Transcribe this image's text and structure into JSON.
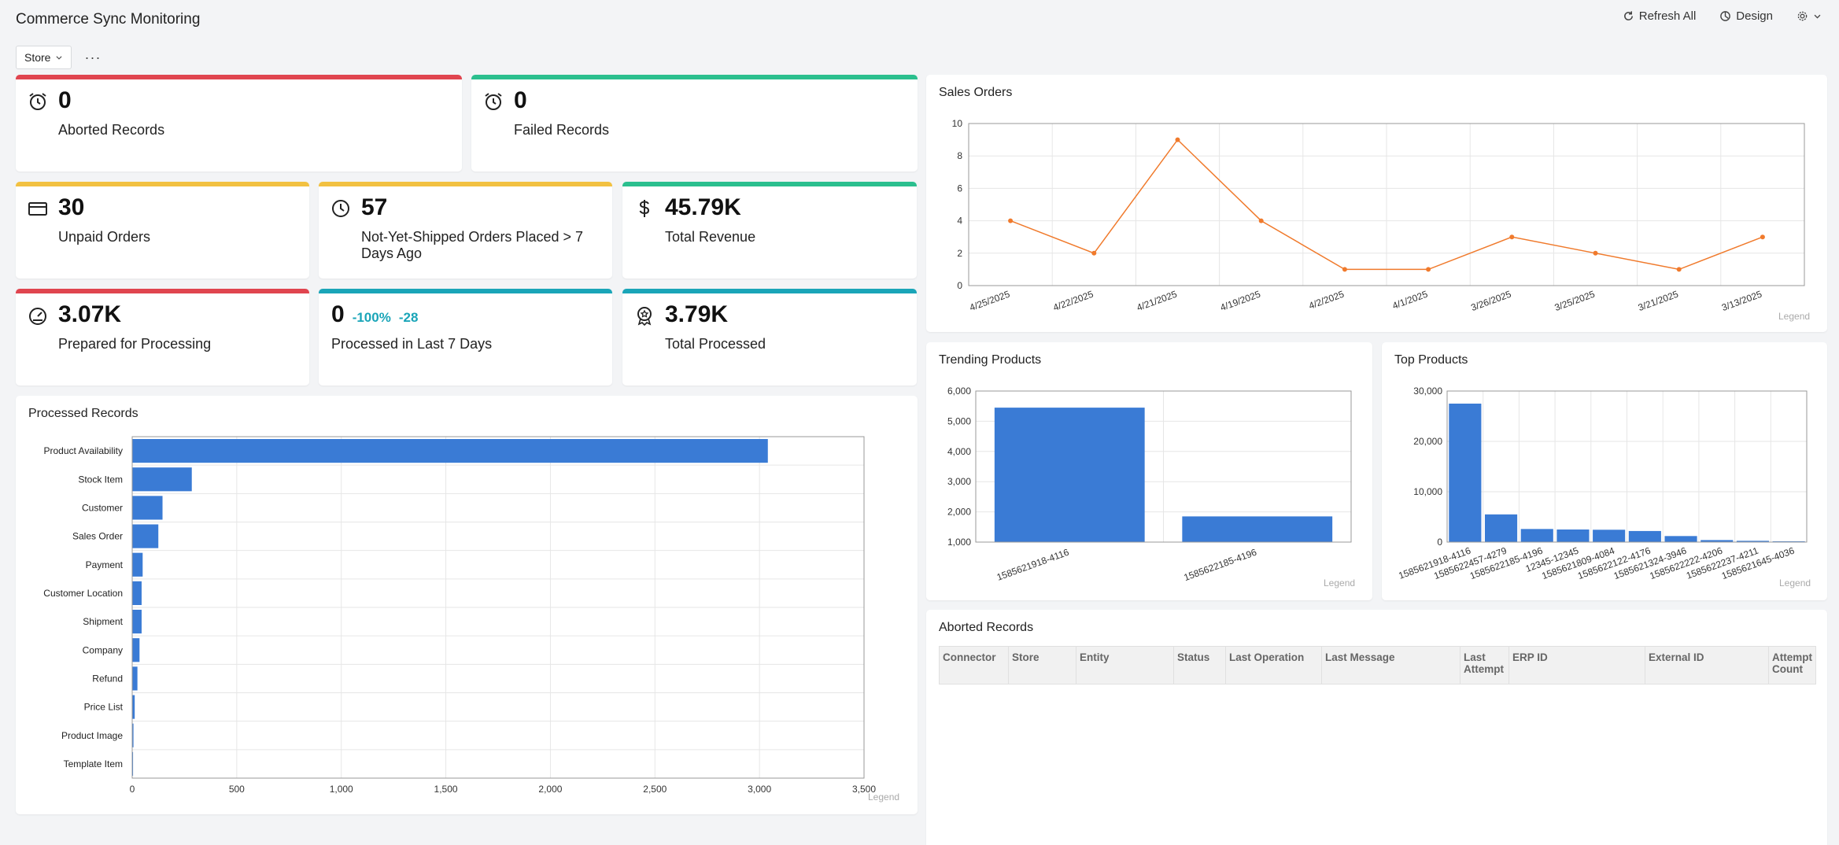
{
  "header": {
    "title": "Commerce Sync Monitoring",
    "refresh_label": "Refresh All",
    "design_label": "Design"
  },
  "filters": {
    "store_label": "Store",
    "more_label": "···"
  },
  "kpis": {
    "aborted": {
      "value": "0",
      "label": "Aborted Records",
      "color": "#e0454f"
    },
    "failed": {
      "value": "0",
      "label": "Failed Records",
      "color": "#2bbf8e"
    },
    "unpaid": {
      "value": "30",
      "label": "Unpaid Orders",
      "color": "#f2c141"
    },
    "not_shipped": {
      "value": "57",
      "label": "Not-Yet-Shipped Orders Placed > 7 Days Ago",
      "color": "#f2c141"
    },
    "revenue": {
      "value": "45.79K",
      "label": "Total Revenue",
      "color": "#2bbf8e"
    },
    "prepared": {
      "value": "3.07K",
      "label": "Prepared for Processing",
      "color": "#e0454f"
    },
    "processed7": {
      "value": "0",
      "delta_pct": "-100%",
      "delta_abs": "-28",
      "label": "Processed in Last 7 Days",
      "color": "#1aa5b8"
    },
    "total_processed": {
      "value": "3.79K",
      "label": "Total Processed",
      "color": "#1aa5b8"
    }
  },
  "panels": {
    "processed_records": {
      "title": "Processed Records",
      "legend": "Legend"
    },
    "sales_orders": {
      "title": "Sales Orders",
      "legend": "Legend"
    },
    "trending": {
      "title": "Trending Products",
      "legend": "Legend"
    },
    "top": {
      "title": "Top Products",
      "legend": "Legend"
    },
    "aborted_table": {
      "title": "Aborted Records",
      "columns": [
        "Connector",
        "Store",
        "Entity",
        "Status",
        "Last Operation",
        "Last Message",
        "Last Attempt",
        "ERP ID",
        "External ID",
        "Attempt Count"
      ]
    }
  },
  "chart_data": [
    {
      "id": "processed_records",
      "type": "bar",
      "orientation": "horizontal",
      "title": "Processed Records",
      "categories": [
        "Product Availability",
        "Stock Item",
        "Customer",
        "Sales Order",
        "Payment",
        "Customer Location",
        "Shipment",
        "Company",
        "Refund",
        "Price List",
        "Product Image",
        "Template Item"
      ],
      "values": [
        3040,
        285,
        145,
        125,
        50,
        45,
        45,
        35,
        25,
        12,
        6,
        4
      ],
      "xlim": [
        0,
        3500
      ],
      "xticks": [
        0,
        500,
        1000,
        1500,
        2000,
        2500,
        3000,
        3500
      ],
      "xtick_labels": [
        "0",
        "500",
        "1,000",
        "1,500",
        "2,000",
        "2,500",
        "3,000",
        "3,500"
      ],
      "color": "#3a7bd5"
    },
    {
      "id": "sales_orders",
      "type": "line",
      "title": "Sales Orders",
      "categories": [
        "4/25/2025",
        "4/22/2025",
        "4/21/2025",
        "4/19/2025",
        "4/2/2025",
        "4/1/2025",
        "3/26/2025",
        "3/25/2025",
        "3/21/2025",
        "3/13/2025"
      ],
      "values": [
        4,
        2,
        9,
        4,
        1,
        1,
        3,
        2,
        1,
        3
      ],
      "ylim": [
        0,
        10
      ],
      "yticks": [
        0,
        2,
        4,
        6,
        8,
        10
      ],
      "color": "#f07a2c"
    },
    {
      "id": "trending",
      "type": "bar",
      "title": "Trending Products",
      "categories": [
        "1585621918-4116",
        "1585622185-4196"
      ],
      "values": [
        5450,
        1850
      ],
      "ylim": [
        1000,
        6000
      ],
      "yticks": [
        1000,
        2000,
        3000,
        4000,
        5000,
        6000
      ],
      "ytick_labels": [
        "1,000",
        "2,000",
        "3,000",
        "4,000",
        "5,000",
        "6,000"
      ],
      "color": "#3a7bd5"
    },
    {
      "id": "top",
      "type": "bar",
      "title": "Top Products",
      "categories": [
        "1585621918-4116",
        "1585622457-4279",
        "1585622185-4196",
        "12345-12345",
        "1585621809-4084",
        "1585622122-4176",
        "1585621324-3946",
        "1585622222-4206",
        "1585622237-4211",
        "1585621645-4036"
      ],
      "tick_labels": [
        "1585621918-4116",
        "1585622457-4279",
        "1585622185-4196",
        "12345-12345",
        "1585621809-4084",
        "1585622122-4176",
        "1585621324-3946",
        "1585622222-4206",
        "1585622237-4211",
        "1585621645-4036"
      ],
      "values": [
        27500,
        5500,
        2600,
        2500,
        2450,
        2200,
        1200,
        400,
        250,
        150
      ],
      "ylim": [
        0,
        30000
      ],
      "yticks": [
        0,
        10000,
        20000,
        30000
      ],
      "ytick_labels": [
        "0",
        "10,000",
        "20,000",
        "30,000"
      ],
      "color": "#3a7bd5"
    }
  ]
}
